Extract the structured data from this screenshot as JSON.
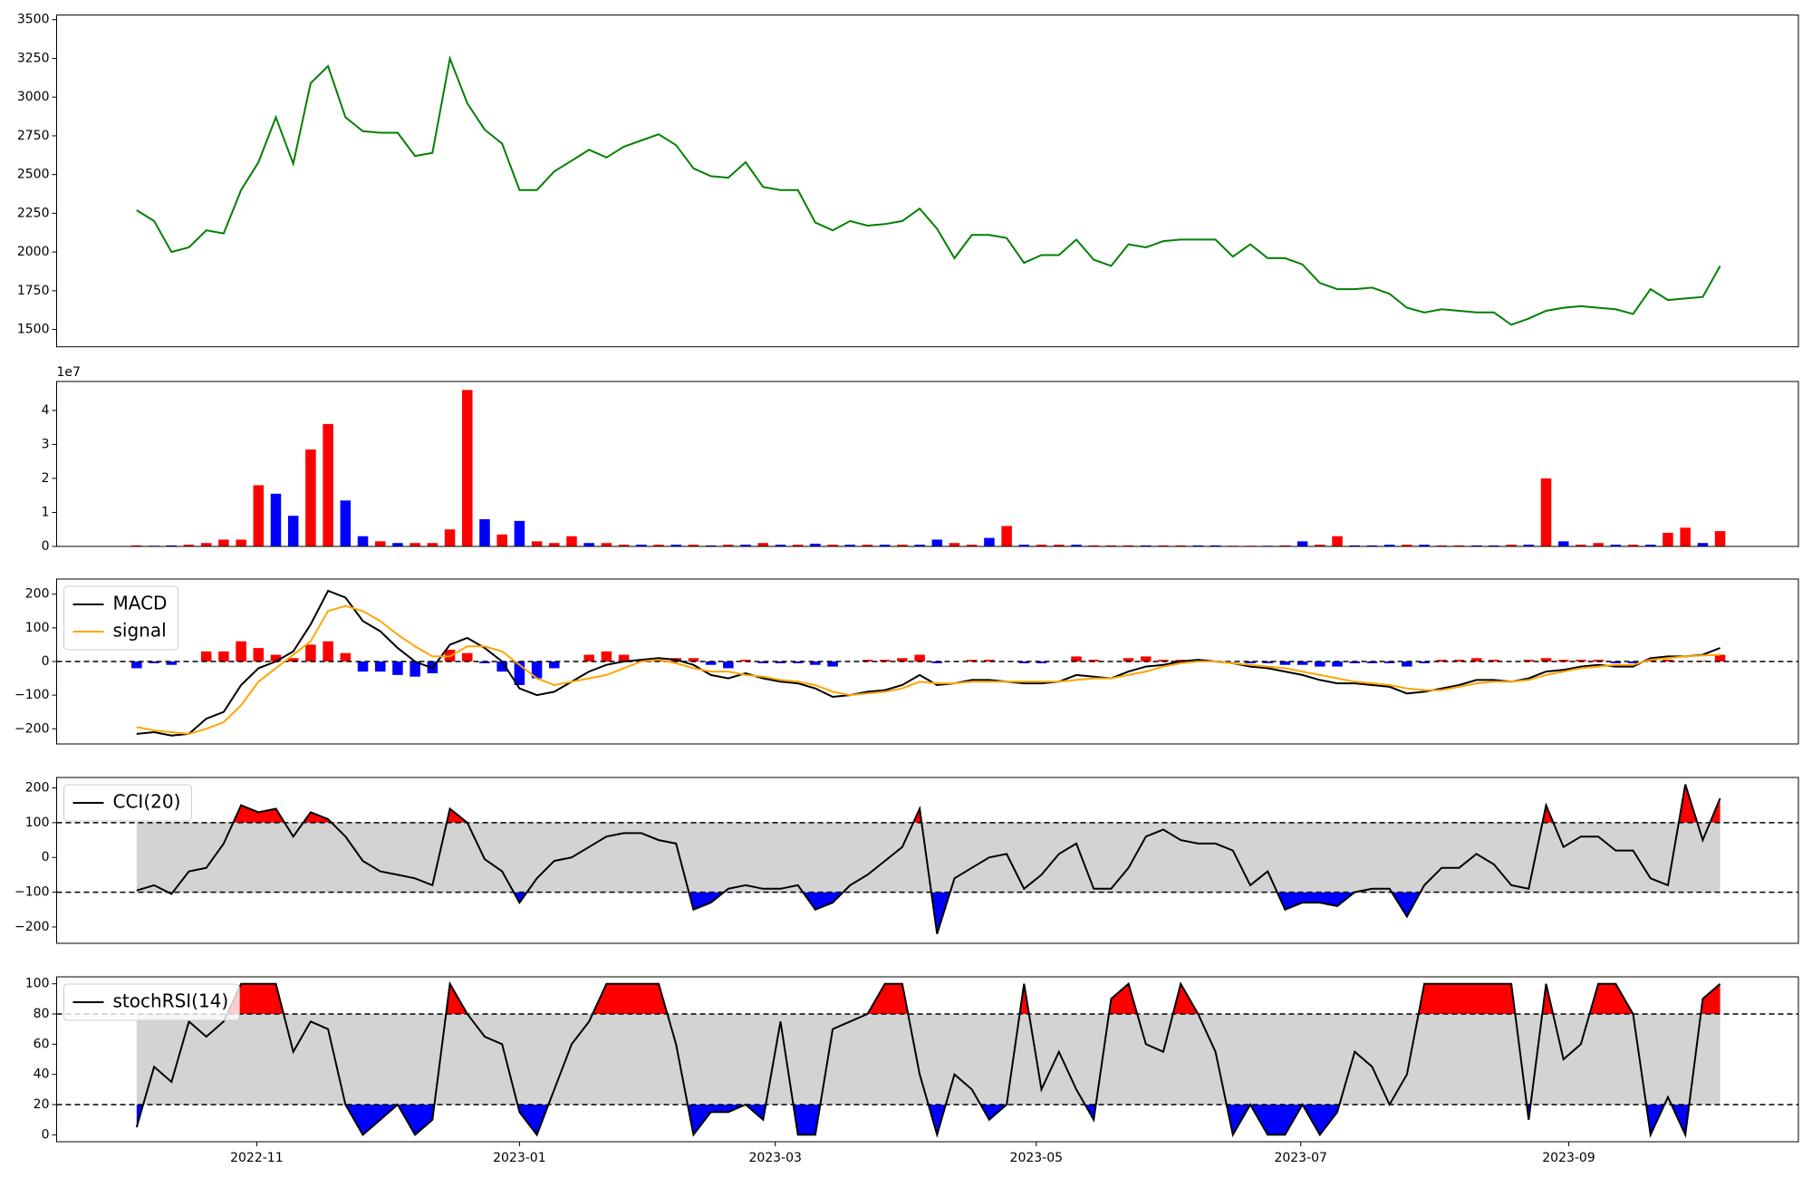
{
  "chart_data": [
    {
      "type": "line",
      "color": "#008000",
      "values": [
        2270,
        2200,
        2000,
        2030,
        2140,
        2120,
        2400,
        2580,
        2870,
        2570,
        3090,
        3200,
        2870,
        2780,
        2770,
        2770,
        2620,
        2640,
        3250,
        2960,
        2790,
        2700,
        2400,
        2400,
        2520,
        2590,
        2660,
        2610,
        2680,
        2720,
        2760,
        2690,
        2540,
        2490,
        2480,
        2580,
        2420,
        2400,
        2400,
        2190,
        2140,
        2200,
        2170,
        2180,
        2200,
        2280,
        2150,
        1960,
        2110,
        2110,
        2090,
        1930,
        1980,
        1980,
        2080,
        1950,
        1910,
        2050,
        2030,
        2070,
        2080,
        2080,
        2080,
        1970,
        2050,
        1960,
        1960,
        1920,
        1800,
        1760,
        1760,
        1770,
        1730,
        1640,
        1610,
        1630,
        1620,
        1610,
        1610,
        1530,
        1570,
        1620,
        1640,
        1650,
        1640,
        1630,
        1600,
        1760,
        1690,
        1700,
        1710,
        1910
      ],
      "xlim": [
        -4.6,
        95.5
      ],
      "ylim": [
        1388,
        3530
      ],
      "yticks": [
        1500,
        1750,
        2000,
        2250,
        2500,
        2750,
        3000,
        3250,
        3500
      ]
    },
    {
      "type": "bar",
      "offset_label": "1e7",
      "values": [
        0.03,
        0.02,
        0.03,
        0.05,
        0.1,
        0.2,
        0.2,
        1.8,
        1.55,
        0.9,
        2.85,
        3.6,
        1.35,
        0.3,
        0.15,
        0.1,
        0.1,
        0.1,
        0.5,
        4.6,
        0.8,
        0.35,
        0.75,
        0.15,
        0.1,
        0.3,
        0.1,
        0.1,
        0.05,
        0.05,
        0.05,
        0.05,
        0.05,
        0.03,
        0.05,
        0.05,
        0.1,
        0.05,
        0.05,
        0.08,
        0.05,
        0.05,
        0.05,
        0.05,
        0.05,
        0.05,
        0.2,
        0.1,
        0.05,
        0.25,
        0.6,
        0.05,
        0.05,
        0.05,
        0.05,
        0.03,
        0.03,
        0.03,
        0.03,
        0.03,
        0.03,
        0.03,
        0.03,
        0.02,
        0.02,
        0.02,
        0.03,
        0.15,
        0.05,
        0.3,
        0.03,
        0.03,
        0.05,
        0.05,
        0.05,
        0.03,
        0.03,
        0.03,
        0.03,
        0.05,
        0.05,
        2,
        0.15,
        0.05,
        0.1,
        0.05,
        0.05,
        0.05,
        0.4,
        0.55,
        0.1,
        0.45
      ],
      "colors": [
        "red",
        "blue",
        "blue",
        "red",
        "red",
        "red",
        "red",
        "red",
        "blue",
        "blue",
        "red",
        "red",
        "blue",
        "blue",
        "red",
        "blue",
        "red",
        "red",
        "red",
        "red",
        "blue",
        "red",
        "blue",
        "red",
        "red",
        "red",
        "blue",
        "red",
        "red",
        "blue",
        "red",
        "blue",
        "red",
        "blue",
        "red",
        "blue",
        "red",
        "blue",
        "red",
        "blue",
        "red",
        "blue",
        "red",
        "blue",
        "red",
        "blue",
        "blue",
        "red",
        "red",
        "blue",
        "red",
        "blue",
        "red",
        "red",
        "blue",
        "red",
        "red",
        "red",
        "blue",
        "red",
        "red",
        "blue",
        "blue",
        "red",
        "red",
        "blue",
        "red",
        "blue",
        "red",
        "red",
        "blue",
        "blue",
        "blue",
        "red",
        "blue",
        "red",
        "red",
        "blue",
        "blue",
        "red",
        "blue",
        "red",
        "blue",
        "red",
        "red",
        "blue",
        "red",
        "blue",
        "red",
        "red",
        "blue",
        "red"
      ],
      "xlim": [
        -4.6,
        95.5
      ],
      "ylim": [
        0,
        4.85
      ],
      "yticks": [
        0,
        1,
        2,
        3,
        4
      ]
    },
    {
      "type": "macd",
      "legend": "upper left",
      "hline": 0,
      "series": [
        {
          "name": "MACD",
          "color": "#000000",
          "values": [
            -215,
            -210,
            -220,
            -215,
            -170,
            -150,
            -70,
            -20,
            0,
            30,
            110,
            210,
            190,
            120,
            90,
            40,
            0,
            -20,
            50,
            70,
            40,
            0,
            -80,
            -100,
            -90,
            -60,
            -30,
            -10,
            0,
            5,
            10,
            5,
            -10,
            -40,
            -50,
            -35,
            -50,
            -60,
            -65,
            -80,
            -105,
            -100,
            -90,
            -85,
            -70,
            -40,
            -70,
            -65,
            -55,
            -55,
            -60,
            -65,
            -65,
            -60,
            -40,
            -45,
            -50,
            -30,
            -15,
            -10,
            0,
            5,
            0,
            -5,
            -15,
            -20,
            -30,
            -40,
            -55,
            -65,
            -65,
            -70,
            -75,
            -95,
            -90,
            -80,
            -70,
            -55,
            -55,
            -60,
            -50,
            -30,
            -25,
            -15,
            -10,
            -15,
            -15,
            10,
            15,
            15,
            20,
            40
          ]
        },
        {
          "name": "signal",
          "color": "#ffa500",
          "values": [
            -195,
            -205,
            -210,
            -215,
            -200,
            -180,
            -130,
            -60,
            -20,
            20,
            60,
            150,
            165,
            150,
            120,
            80,
            45,
            15,
            15,
            45,
            45,
            30,
            -10,
            -50,
            -70,
            -60,
            -50,
            -40,
            -20,
            0,
            5,
            -5,
            -20,
            -30,
            -30,
            -40,
            -45,
            -55,
            -60,
            -70,
            -90,
            -100,
            -95,
            -90,
            -80,
            -60,
            -65,
            -65,
            -60,
            -60,
            -60,
            -60,
            -60,
            -60,
            -55,
            -50,
            -50,
            -40,
            -30,
            -15,
            -5,
            0,
            0,
            -5,
            -10,
            -15,
            -20,
            -30,
            -40,
            -50,
            -60,
            -65,
            -70,
            -80,
            -85,
            -85,
            -75,
            -65,
            -60,
            -60,
            -55,
            -40,
            -30,
            -20,
            -15,
            -10,
            -10,
            5,
            10,
            15,
            18,
            20
          ]
        }
      ],
      "histogram": {
        "up_color": "red",
        "down_color": "blue",
        "values": [
          -20,
          -5,
          -10,
          0,
          30,
          30,
          60,
          40,
          20,
          10,
          50,
          60,
          25,
          -30,
          -30,
          -40,
          -45,
          -35,
          35,
          25,
          -5,
          -30,
          -70,
          -50,
          -20,
          0,
          20,
          30,
          20,
          5,
          5,
          10,
          10,
          -10,
          -20,
          5,
          -5,
          -5,
          -5,
          -10,
          -15,
          0,
          5,
          5,
          10,
          20,
          -5,
          0,
          5,
          5,
          0,
          -5,
          -5,
          0,
          15,
          5,
          0,
          10,
          15,
          5,
          5,
          5,
          0,
          0,
          -5,
          -5,
          -10,
          -10,
          -15,
          -15,
          -5,
          -5,
          -5,
          -15,
          -5,
          5,
          5,
          10,
          5,
          0,
          5,
          10,
          5,
          5,
          5,
          -5,
          -5,
          5,
          5,
          0,
          2,
          20
        ]
      },
      "xlim": [
        -4.6,
        95.5
      ],
      "ylim": [
        -245,
        245
      ],
      "yticks": [
        {
          "value": -200,
          "label": "−200"
        },
        {
          "value": -100,
          "label": "−100"
        },
        0,
        100,
        200
      ]
    },
    {
      "type": "oscillator",
      "legend": "upper left",
      "thresholds": [
        -100,
        100
      ],
      "band_color": "#d3d3d3",
      "upper_color": "red",
      "lower_color": "blue",
      "series": [
        {
          "name": "CCI(20)",
          "color": "#000000",
          "values": [
            -95,
            -80,
            -105,
            -40,
            -30,
            40,
            150,
            130,
            140,
            60,
            130,
            110,
            60,
            -10,
            -40,
            -50,
            -60,
            -80,
            140,
            100,
            -5,
            -40,
            -130,
            -60,
            -10,
            0,
            30,
            60,
            70,
            70,
            50,
            40,
            -150,
            -130,
            -90,
            -80,
            -90,
            -90,
            -80,
            -150,
            -130,
            -80,
            -50,
            -10,
            30,
            140,
            -220,
            -60,
            -30,
            0,
            10,
            -90,
            -50,
            10,
            40,
            -90,
            -90,
            -30,
            60,
            80,
            50,
            40,
            40,
            20,
            -80,
            -40,
            -150,
            -130,
            -130,
            -140,
            -100,
            -90,
            -90,
            -170,
            -80,
            -30,
            -30,
            10,
            -20,
            -80,
            -90,
            150,
            30,
            60,
            60,
            20,
            20,
            -60,
            -80,
            210,
            50,
            170
          ]
        }
      ],
      "xlim": [
        -4.6,
        95.5
      ],
      "ylim": [
        -247,
        230
      ],
      "yticks": [
        {
          "value": -200,
          "label": "−200"
        },
        {
          "value": -100,
          "label": "−100"
        },
        0,
        100,
        200
      ]
    },
    {
      "type": "oscillator",
      "legend": "upper left",
      "thresholds": [
        20,
        80
      ],
      "band_color": "#d3d3d3",
      "upper_color": "red",
      "lower_color": "blue",
      "series": [
        {
          "name": "stochRSI(14)",
          "color": "#000000",
          "values": [
            5,
            45,
            35,
            75,
            65,
            75,
            100,
            100,
            100,
            55,
            75,
            70,
            20,
            0,
            10,
            20,
            0,
            10,
            100,
            80,
            65,
            60,
            15,
            0,
            30,
            60,
            75,
            100,
            100,
            100,
            100,
            60,
            0,
            15,
            15,
            20,
            10,
            75,
            0,
            0,
            70,
            75,
            80,
            100,
            100,
            40,
            0,
            40,
            30,
            10,
            20,
            100,
            30,
            55,
            30,
            10,
            90,
            100,
            60,
            55,
            100,
            80,
            55,
            0,
            20,
            0,
            0,
            20,
            0,
            15,
            55,
            45,
            20,
            40,
            100,
            100,
            100,
            100,
            100,
            100,
            10,
            100,
            50,
            60,
            100,
            100,
            80,
            0,
            25,
            0,
            90,
            100
          ]
        }
      ],
      "xlim": [
        -4.6,
        95.5
      ],
      "ylim": [
        -4.6,
        104.6
      ],
      "yticks": [
        0,
        20,
        40,
        60,
        80,
        100
      ],
      "xticks": [
        {
          "value": 6.9,
          "label": "2022-11"
        },
        {
          "value": 22,
          "label": "2023-01"
        },
        {
          "value": 36.7,
          "label": "2023-03"
        },
        {
          "value": 51.7,
          "label": "2023-05"
        },
        {
          "value": 66.9,
          "label": "2023-07"
        },
        {
          "value": 82.3,
          "label": "2023-09"
        }
      ]
    }
  ]
}
